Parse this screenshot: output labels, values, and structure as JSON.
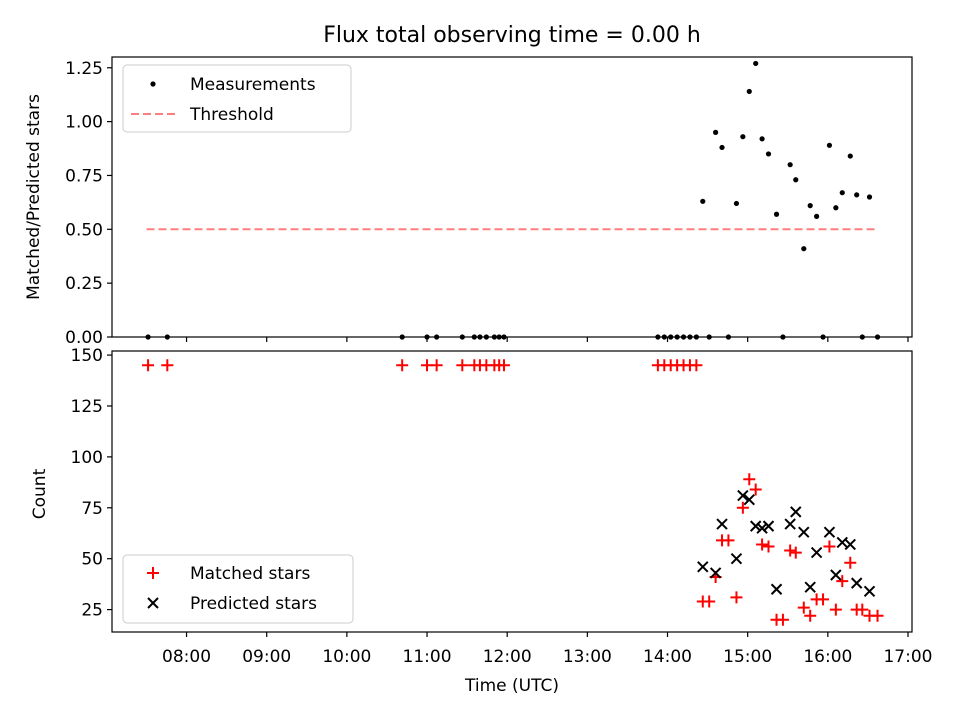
{
  "chart_data": [
    {
      "type": "scatter",
      "title": "Flux total observing time = 0.00 h",
      "xlabel": "",
      "ylabel": "Matched/Predicted stars",
      "xlim": [
        7.07,
        17.05
      ],
      "ylim": [
        0.0,
        1.3
      ],
      "yticks": [
        0.0,
        0.25,
        0.5,
        0.75,
        1.0,
        1.25
      ],
      "ytick_labels": [
        "0.00",
        "0.25",
        "0.50",
        "0.75",
        "1.00",
        "1.25"
      ],
      "legend_position": "upper-left",
      "series": [
        {
          "name": "Measurements",
          "marker": "dot",
          "color": "#000000",
          "x": [
            7.52,
            7.76,
            10.69,
            11.0,
            11.12,
            11.44,
            11.59,
            11.66,
            11.74,
            11.84,
            11.9,
            11.96,
            13.88,
            13.96,
            14.04,
            14.12,
            14.2,
            14.28,
            14.36,
            14.44,
            14.52,
            14.6,
            14.68,
            14.76,
            14.86,
            14.94,
            15.02,
            15.1,
            15.18,
            15.26,
            15.36,
            15.44,
            15.53,
            15.6,
            15.7,
            15.78,
            15.86,
            15.94,
            16.02,
            16.1,
            16.18,
            16.28,
            16.36,
            16.43,
            16.52,
            16.62
          ],
          "y": [
            0.0,
            0.0,
            0.0,
            0.0,
            0.0,
            0.0,
            0.0,
            0.0,
            0.0,
            0.0,
            0.0,
            0.0,
            0.0,
            0.0,
            0.0,
            0.0,
            0.0,
            0.0,
            0.0,
            0.63,
            0.0,
            0.95,
            0.88,
            0.0,
            0.62,
            0.93,
            1.14,
            1.27,
            0.92,
            0.85,
            0.57,
            0.0,
            0.8,
            0.73,
            0.41,
            0.61,
            0.56,
            0.0,
            0.89,
            0.6,
            0.67,
            0.84,
            0.66,
            0.0,
            0.65,
            0.0
          ]
        },
        {
          "name": "Threshold",
          "style": "dashed",
          "color": "#ff7f7f",
          "x": [
            7.5,
            16.62
          ],
          "y": [
            0.5,
            0.5
          ]
        }
      ]
    },
    {
      "type": "scatter",
      "title": "",
      "xlabel": "Time (UTC)",
      "ylabel": "Count",
      "xlim": [
        7.07,
        17.05
      ],
      "ylim": [
        14.0,
        152.0
      ],
      "yticks": [
        25,
        50,
        75,
        100,
        125,
        150
      ],
      "ytick_labels": [
        "25",
        "50",
        "75",
        "100",
        "125",
        "150"
      ],
      "xticks": [
        8,
        9,
        10,
        11,
        12,
        13,
        14,
        15,
        16,
        17
      ],
      "xtick_labels": [
        "08:00",
        "09:00",
        "10:00",
        "11:00",
        "12:00",
        "13:00",
        "14:00",
        "15:00",
        "16:00",
        "17:00"
      ],
      "legend_position": "lower-left",
      "series": [
        {
          "name": "Matched stars",
          "marker": "plus",
          "color": "#ff0000",
          "x": [
            7.52,
            7.76,
            10.69,
            11.0,
            11.12,
            11.44,
            11.59,
            11.66,
            11.74,
            11.84,
            11.9,
            11.96,
            13.88,
            13.96,
            14.04,
            14.12,
            14.2,
            14.28,
            14.36,
            14.44,
            14.52,
            14.6,
            14.68,
            14.76,
            14.86,
            14.94,
            15.02,
            15.1,
            15.18,
            15.26,
            15.36,
            15.44,
            15.53,
            15.6,
            15.7,
            15.78,
            15.86,
            15.94,
            16.02,
            16.1,
            16.18,
            16.28,
            16.36,
            16.43,
            16.52,
            16.62
          ],
          "y": [
            145,
            145,
            145,
            145,
            145,
            145,
            145,
            145,
            145,
            145,
            145,
            145,
            145,
            145,
            145,
            145,
            145,
            145,
            145,
            29,
            29,
            41,
            59,
            59,
            31,
            75,
            89,
            84,
            57,
            56,
            20,
            20,
            54,
            53,
            26,
            22,
            30,
            30,
            56,
            25,
            39,
            48,
            25,
            25,
            22,
            22
          ]
        },
        {
          "name": "Predicted stars",
          "marker": "x",
          "color": "#000000",
          "x": [
            14.44,
            14.6,
            14.68,
            14.86,
            14.94,
            15.02,
            15.1,
            15.18,
            15.26,
            15.36,
            15.53,
            15.6,
            15.7,
            15.78,
            15.86,
            16.02,
            16.1,
            16.18,
            16.28,
            16.36,
            16.52
          ],
          "y": [
            46,
            43,
            67,
            50,
            81,
            79,
            66,
            65,
            66,
            35,
            67,
            73,
            63,
            36,
            53,
            63,
            42,
            58,
            57,
            38,
            34
          ]
        }
      ]
    }
  ]
}
